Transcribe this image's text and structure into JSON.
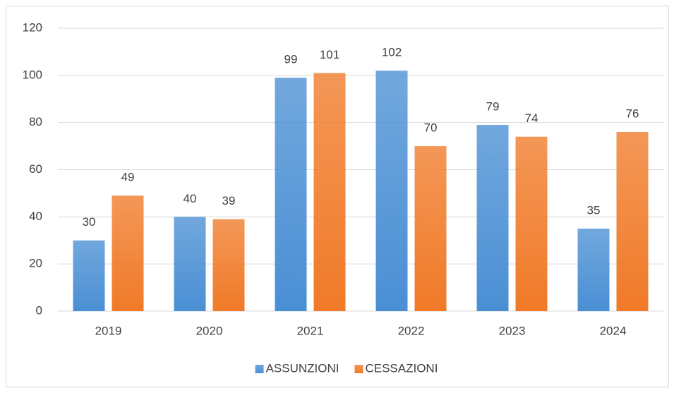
{
  "chart_data": {
    "type": "bar",
    "categories": [
      "2019",
      "2020",
      "2021",
      "2022",
      "2023",
      "2024"
    ],
    "series": [
      {
        "name": "ASSUNZIONI",
        "color": "#4a8fd4",
        "values": [
          30,
          40,
          99,
          102,
          79,
          35
        ]
      },
      {
        "name": "CESSAZIONI",
        "color": "#f07a28",
        "values": [
          49,
          39,
          101,
          70,
          74,
          76
        ]
      }
    ],
    "ylim": [
      0,
      120
    ],
    "yticks": [
      0,
      20,
      40,
      60,
      80,
      100,
      120
    ],
    "grid": true,
    "legend": "bottom",
    "data_labels": true
  }
}
